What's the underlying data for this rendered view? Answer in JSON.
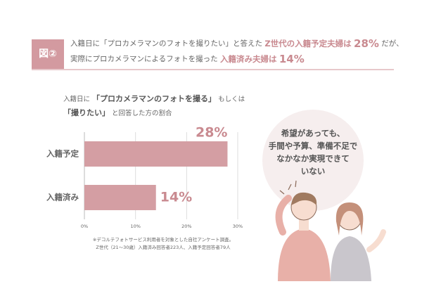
{
  "header": {
    "badge": "図②",
    "lines": [
      [
        "入籍日に「プロカメラマンのフォトを撮りたい」と答えた",
        "Z世代の入籍予定夫婦は",
        "28%",
        "だが、"
      ],
      [
        "実際にプロカメラマンによるフォトを撮った",
        "入籍済み夫婦は",
        "14%"
      ]
    ]
  },
  "chart_data": {
    "type": "bar",
    "orientation": "horizontal",
    "title": [
      [
        "入籍日に",
        "「プロカメラマンのフォトを撮る」",
        "もしくは"
      ],
      [
        "「撮りたい」",
        "と回答した方の割合"
      ]
    ],
    "categories": [
      "入籍予定",
      "入籍済み"
    ],
    "values": [
      28,
      14
    ],
    "value_labels": [
      "28%",
      "14%"
    ],
    "color": "#d49ea3",
    "xlim": [
      0,
      30
    ],
    "xticks": [
      {
        "value": 0,
        "label": "0%"
      },
      {
        "value": 10,
        "label": "10%"
      },
      {
        "value": 20,
        "label": "20%"
      },
      {
        "value": 30,
        "label": "30%"
      }
    ],
    "grid": true,
    "footnote": [
      "※デコルテフォトサービス利用者を対象とした自社アンケート調査。",
      "Z世代（21〜30歳）入籍済み回答者223人、入籍予定回答者79人"
    ]
  },
  "callout": {
    "lines": [
      "希望があっても、",
      "手間や予算、準備不足で",
      "なかなか実現できて",
      "いない"
    ]
  }
}
